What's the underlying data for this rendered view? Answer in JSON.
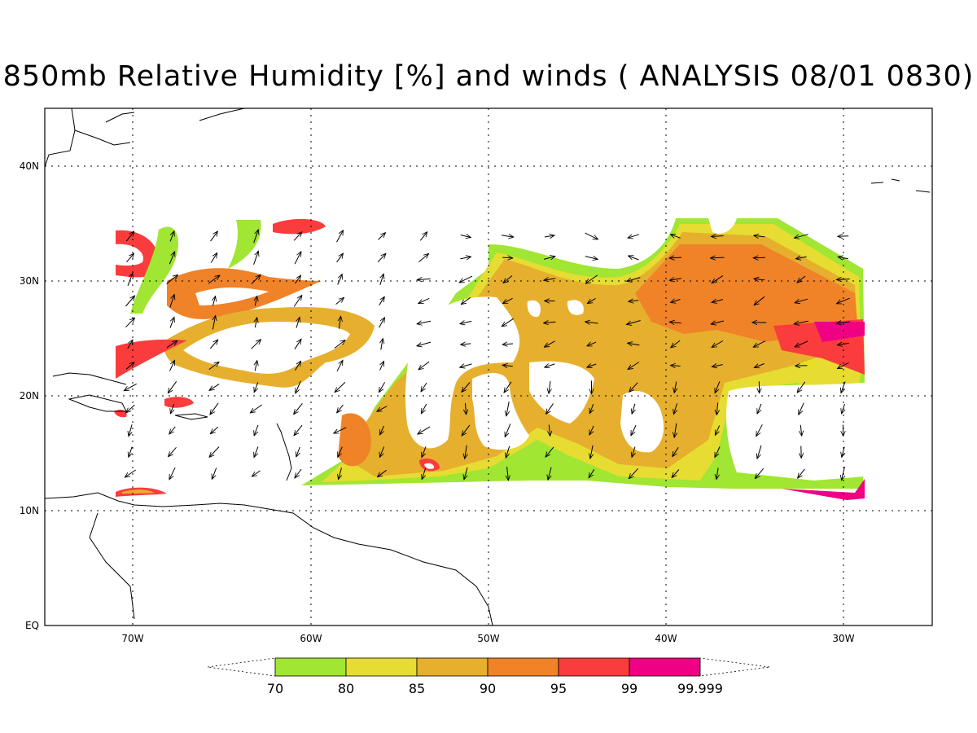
{
  "title": "850mb Relative Humidity [%] and winds ( ANALYSIS 08/01 0830)",
  "axes": {
    "lon_ticks": [
      "70W",
      "60W",
      "50W",
      "40W",
      "30W"
    ],
    "lat_ticks": [
      "40N",
      "30N",
      "20N",
      "10N",
      "EQ"
    ],
    "lon_range": [
      -75,
      -25
    ],
    "lat_range": [
      0,
      45
    ],
    "grid": true
  },
  "colorbar": {
    "levels": [
      "70",
      "80",
      "85",
      "90",
      "95",
      "99",
      "99.999"
    ],
    "colors": [
      "#a0e632",
      "#e6dc32",
      "#e6af2d",
      "#f08228",
      "#fa3c3c",
      "#f00082"
    ]
  },
  "winds_plotted": true
}
